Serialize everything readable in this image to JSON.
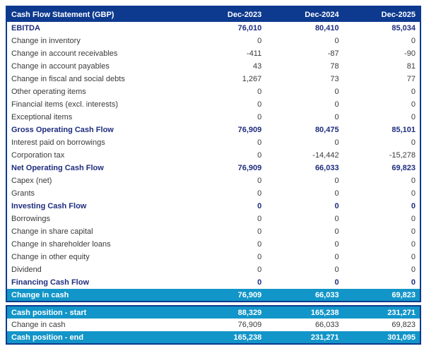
{
  "colors": {
    "header_bg": "#0d3a8f",
    "header_text": "#ffffff",
    "highlight_bg": "#1295c8",
    "highlight_text": "#ffffff",
    "subtotal_text": "#1e2d7e",
    "body_text": "#3a3a3a",
    "border": "#0d3a8f"
  },
  "chart_data": {
    "type": "table",
    "title": "Cash Flow Statement (GBP)",
    "columns": [
      "Dec-2023",
      "Dec-2024",
      "Dec-2025"
    ],
    "rows": [
      {
        "label": "EBITDA",
        "values": [
          "76,010",
          "80,410",
          "85,034"
        ],
        "style": "bold"
      },
      {
        "label": "Change in inventory",
        "values": [
          "0",
          "0",
          "0"
        ],
        "style": "normal"
      },
      {
        "label": "Change in account receivables",
        "values": [
          "-411",
          "-87",
          "-90"
        ],
        "style": "normal"
      },
      {
        "label": "Change in account payables",
        "values": [
          "43",
          "78",
          "81"
        ],
        "style": "normal"
      },
      {
        "label": "Change in fiscal and social debts",
        "values": [
          "1,267",
          "73",
          "77"
        ],
        "style": "normal"
      },
      {
        "label": "Other operating items",
        "values": [
          "0",
          "0",
          "0"
        ],
        "style": "normal"
      },
      {
        "label": "Financial items (excl. interests)",
        "values": [
          "0",
          "0",
          "0"
        ],
        "style": "normal"
      },
      {
        "label": "Exceptional items",
        "values": [
          "0",
          "0",
          "0"
        ],
        "style": "normal"
      },
      {
        "label": "Gross Operating Cash Flow",
        "values": [
          "76,909",
          "80,475",
          "85,101"
        ],
        "style": "bold"
      },
      {
        "label": "Interest paid on borrowings",
        "values": [
          "0",
          "0",
          "0"
        ],
        "style": "normal"
      },
      {
        "label": "Corporation tax",
        "values": [
          "0",
          "-14,442",
          "-15,278"
        ],
        "style": "normal"
      },
      {
        "label": "Net Operating Cash Flow",
        "values": [
          "76,909",
          "66,033",
          "69,823"
        ],
        "style": "bold"
      },
      {
        "label": "Capex (net)",
        "values": [
          "0",
          "0",
          "0"
        ],
        "style": "normal"
      },
      {
        "label": "Grants",
        "values": [
          "0",
          "0",
          "0"
        ],
        "style": "normal"
      },
      {
        "label": "Investing Cash Flow",
        "values": [
          "0",
          "0",
          "0"
        ],
        "style": "bold"
      },
      {
        "label": "Borrowings",
        "values": [
          "0",
          "0",
          "0"
        ],
        "style": "normal"
      },
      {
        "label": "Change in share capital",
        "values": [
          "0",
          "0",
          "0"
        ],
        "style": "normal"
      },
      {
        "label": "Change in shareholder loans",
        "values": [
          "0",
          "0",
          "0"
        ],
        "style": "normal"
      },
      {
        "label": "Change in other equity",
        "values": [
          "0",
          "0",
          "0"
        ],
        "style": "normal"
      },
      {
        "label": "Dividend",
        "values": [
          "0",
          "0",
          "0"
        ],
        "style": "normal"
      },
      {
        "label": "Financing Cash Flow",
        "values": [
          "0",
          "0",
          "0"
        ],
        "style": "bold"
      },
      {
        "label": "Change in cash",
        "values": [
          "76,909",
          "66,033",
          "69,823"
        ],
        "style": "highlight"
      }
    ],
    "summary_rows": [
      {
        "label": "Cash position - start",
        "values": [
          "88,329",
          "165,238",
          "231,271"
        ],
        "style": "highlight"
      },
      {
        "label": "Change in cash",
        "values": [
          "76,909",
          "66,033",
          "69,823"
        ],
        "style": "normal"
      },
      {
        "label": "Cash position - end",
        "values": [
          "165,238",
          "231,271",
          "301,095"
        ],
        "style": "highlight"
      }
    ]
  }
}
